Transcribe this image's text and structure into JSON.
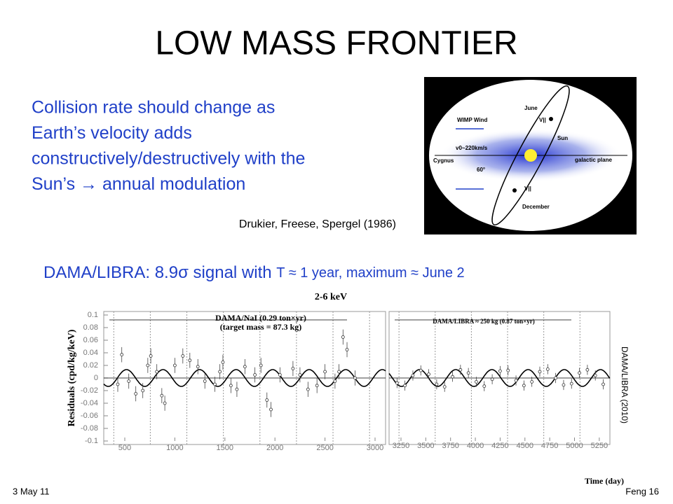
{
  "title": "LOW MASS FRONTIER",
  "bullet_lines": [
    "Collision rate should change as",
    "Earth’s velocity adds",
    "constructively/destructively with the",
    "Sun’s  → annual modulation"
  ],
  "diagram": {
    "labels": [
      "June",
      "V||",
      "Sun",
      "WIMP Wind",
      "v0~220km/s",
      "Cygnus",
      "60°",
      "galactic plane",
      "December",
      "V||"
    ]
  },
  "citation": "Drukier, Freese, Spergel (1986)",
  "dama_line": {
    "main": "DAMA/LIBRA: 8.9σ signal with",
    "detail": "T ≈ 1 year, maximum ≈ June 2"
  },
  "plot": {
    "type": "scatter",
    "title": "2-6 keV",
    "ylabel": "Residuals (cpd/kg/keV)",
    "xlabel": "Time (day)",
    "ylim": [
      -0.1,
      0.1
    ],
    "yticks": [
      0.1,
      0.08,
      0.06,
      0.04,
      0.02,
      0,
      -0.02,
      -0.04,
      -0.06,
      -0.08,
      -0.1
    ],
    "side_label": "DAMA/LIBRA (2010)",
    "panels": [
      {
        "annotations": [
          "DAMA/NaI (0.29 ton×yr)",
          "(target mass = 87.3 kg)"
        ],
        "xlim": [
          290,
          3105
        ],
        "xticks": [
          500,
          1000,
          1500,
          2000,
          2500,
          3000
        ],
        "x": [
          430,
          470,
          540,
          610,
          680,
          730,
          760,
          820,
          870,
          900,
          1000,
          1080,
          1150,
          1230,
          1300,
          1400,
          1450,
          1480,
          1560,
          1620,
          1700,
          1800,
          1860,
          1920,
          1960,
          2050,
          2180,
          2250,
          2330,
          2420,
          2500,
          2600,
          2640,
          2680,
          2720,
          2800
        ],
        "values": [
          -0.01,
          0.037,
          -0.005,
          -0.025,
          -0.02,
          0.02,
          0.035,
          0.01,
          -0.028,
          -0.04,
          0.02,
          0.035,
          0.028,
          0.018,
          -0.005,
          -0.01,
          0.01,
          0.025,
          -0.012,
          -0.018,
          0.018,
          0.005,
          0.02,
          -0.035,
          -0.05,
          0.005,
          0.015,
          0.005,
          -0.018,
          -0.012,
          0.01,
          -0.005,
          0.01,
          0.065,
          0.045,
          0.0
        ],
        "errors": [
          0.012,
          0.012,
          0.012,
          0.012,
          0.012,
          0.012,
          0.012,
          0.012,
          0.012,
          0.012,
          0.012,
          0.012,
          0.012,
          0.012,
          0.012,
          0.012,
          0.012,
          0.012,
          0.012,
          0.012,
          0.012,
          0.012,
          0.012,
          0.012,
          0.012,
          0.012,
          0.012,
          0.012,
          0.012,
          0.012,
          0.012,
          0.012,
          0.012,
          0.012,
          0.012,
          0.012
        ]
      },
      {
        "annotations": [
          "DAMA/LIBRA ≈ 250 kg  (0.87 ton×yr)"
        ],
        "xlim": [
          3130,
          5357
        ],
        "xticks": [
          3250,
          3500,
          3750,
          4000,
          4250,
          4500,
          4750,
          5000,
          5250
        ],
        "x": [
          3210,
          3290,
          3370,
          3450,
          3530,
          3610,
          3690,
          3770,
          3850,
          3930,
          4010,
          4090,
          4170,
          4250,
          4330,
          4410,
          4490,
          4570,
          4650,
          4730,
          4810,
          4890,
          4970,
          5050,
          5130,
          5210,
          5290
        ],
        "values": [
          -0.008,
          -0.012,
          0.004,
          0.012,
          0.006,
          -0.01,
          -0.014,
          0.002,
          0.013,
          0.008,
          -0.006,
          -0.013,
          -0.002,
          0.011,
          0.012,
          -0.004,
          -0.012,
          -0.006,
          0.01,
          0.014,
          0.0,
          -0.011,
          -0.009,
          0.008,
          0.013,
          0.004,
          -0.01
        ],
        "errors": [
          0.008,
          0.008,
          0.008,
          0.008,
          0.008,
          0.008,
          0.008,
          0.008,
          0.008,
          0.008,
          0.008,
          0.008,
          0.008,
          0.008,
          0.008,
          0.008,
          0.008,
          0.008,
          0.008,
          0.008,
          0.008,
          0.008,
          0.008,
          0.008,
          0.008,
          0.008,
          0.008
        ]
      }
    ]
  },
  "footer": {
    "date": "3 May 11",
    "page": "Feng 16"
  }
}
